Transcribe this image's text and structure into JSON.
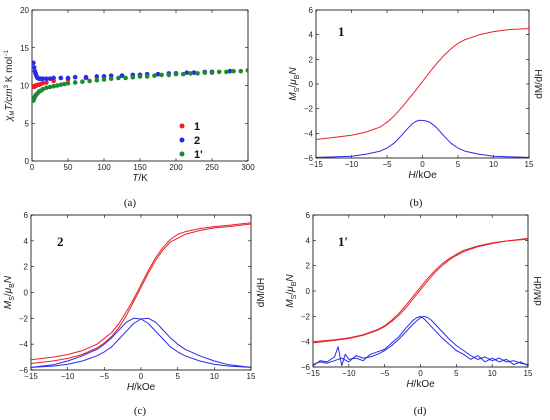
{
  "chart_data": [
    {
      "type": "scatter",
      "panel_caption": "(a)",
      "xlabel_main": "T",
      "xlabel_unit": "/K",
      "ylabel_sym": "χ",
      "ylabel_sub": "M",
      "ylabel_rest": "T/cm",
      "ylabel_sup1": "3",
      "ylabel_unit": " K mol",
      "ylabel_sup2": "−1",
      "xlim": [
        0,
        300
      ],
      "ylim": [
        0,
        20
      ],
      "xticks": [
        0,
        50,
        100,
        150,
        200,
        250,
        300
      ],
      "yticks": [
        0,
        5,
        10,
        15,
        20
      ],
      "legend_position": "right",
      "series": [
        {
          "name": "1",
          "color": "#e8202a",
          "points": [
            [
              2,
              9.9
            ],
            [
              3,
              9.8
            ],
            [
              4,
              9.9
            ],
            [
              5,
              10.0
            ],
            [
              6,
              10.0
            ],
            [
              8,
              10.1
            ],
            [
              10,
              10.1
            ],
            [
              12,
              10.2
            ],
            [
              15,
              10.3
            ],
            [
              20,
              10.4
            ],
            [
              30,
              10.6
            ],
            [
              50,
              10.8
            ],
            [
              75,
              11.0
            ],
            [
              100,
              11.2
            ],
            [
              125,
              11.3
            ],
            [
              150,
              11.4
            ],
            [
              175,
              11.5
            ],
            [
              200,
              11.6
            ],
            [
              225,
              11.7
            ],
            [
              250,
              11.8
            ],
            [
              275,
              11.9
            ],
            [
              300,
              12.0
            ]
          ]
        },
        {
          "name": "2",
          "color": "#2a2ae8",
          "points": [
            [
              2,
              13.0
            ],
            [
              3,
              12.4
            ],
            [
              4,
              11.9
            ],
            [
              5,
              11.6
            ],
            [
              6,
              11.3
            ],
            [
              7,
              11.1
            ],
            [
              8,
              11.0
            ],
            [
              10,
              10.9
            ],
            [
              12,
              10.9
            ],
            [
              15,
              10.9
            ],
            [
              20,
              10.9
            ],
            [
              25,
              10.9
            ],
            [
              30,
              11.0
            ],
            [
              40,
              11.0
            ],
            [
              50,
              11.0
            ],
            [
              60,
              11.1
            ],
            [
              75,
              11.1
            ],
            [
              90,
              11.2
            ],
            [
              100,
              11.2
            ],
            [
              110,
              11.3
            ],
            [
              125,
              11.3
            ],
            [
              140,
              11.4
            ],
            [
              150,
              11.4
            ],
            [
              160,
              11.5
            ],
            [
              175,
              11.5
            ],
            [
              190,
              11.6
            ],
            [
              200,
              11.6
            ],
            [
              215,
              11.7
            ],
            [
              225,
              11.7
            ],
            [
              240,
              11.8
            ],
            [
              250,
              11.8
            ],
            [
              275,
              11.9
            ],
            [
              300,
              12.0
            ]
          ]
        },
        {
          "name": "1'",
          "color": "#1c8a2e",
          "points": [
            [
              2,
              8.0
            ],
            [
              3,
              8.3
            ],
            [
              4,
              8.5
            ],
            [
              5,
              8.7
            ],
            [
              6,
              8.8
            ],
            [
              8,
              9.0
            ],
            [
              10,
              9.2
            ],
            [
              12,
              9.3
            ],
            [
              15,
              9.5
            ],
            [
              20,
              9.7
            ],
            [
              25,
              9.8
            ],
            [
              30,
              9.9
            ],
            [
              35,
              10.0
            ],
            [
              40,
              10.1
            ],
            [
              45,
              10.2
            ],
            [
              50,
              10.3
            ],
            [
              60,
              10.4
            ],
            [
              70,
              10.5
            ],
            [
              80,
              10.6
            ],
            [
              90,
              10.7
            ],
            [
              100,
              10.8
            ],
            [
              110,
              10.9
            ],
            [
              120,
              11.0
            ],
            [
              130,
              11.0
            ],
            [
              140,
              11.1
            ],
            [
              150,
              11.2
            ],
            [
              160,
              11.2
            ],
            [
              170,
              11.3
            ],
            [
              180,
              11.4
            ],
            [
              190,
              11.4
            ],
            [
              200,
              11.5
            ],
            [
              210,
              11.5
            ],
            [
              220,
              11.6
            ],
            [
              230,
              11.6
            ],
            [
              240,
              11.7
            ],
            [
              250,
              11.7
            ],
            [
              260,
              11.8
            ],
            [
              270,
              11.8
            ],
            [
              280,
              11.9
            ],
            [
              290,
              11.9
            ],
            [
              300,
              12.0
            ]
          ]
        }
      ]
    },
    {
      "type": "line",
      "panel_caption": "(b)",
      "panel_label": "1",
      "xlabel_main": "H",
      "xlabel_unit": "/kOe",
      "ylabel_left": {
        "M": "M",
        "Ms": "S",
        "mu": "μ",
        "mub": "B",
        "N": "N"
      },
      "ylabel_right": "dM/dH",
      "xlim": [
        -15,
        15
      ],
      "ylim": [
        -6,
        6
      ],
      "xticks": [
        -15,
        -10,
        -5,
        0,
        5,
        10,
        15
      ],
      "yticks": [
        -6,
        -4,
        -2,
        0,
        2,
        4,
        6
      ],
      "series": [
        {
          "name": "",
          "color": "#e8202a",
          "x": [
            -15,
            -12,
            -10,
            -8,
            -6,
            -5,
            -4,
            -3,
            -2,
            -1,
            0,
            1,
            2,
            3,
            4,
            5,
            6,
            8,
            10,
            12,
            15
          ],
          "y": [
            -4.5,
            -4.3,
            -4.15,
            -3.9,
            -3.5,
            -3.1,
            -2.6,
            -1.95,
            -1.25,
            -0.55,
            0.2,
            0.95,
            1.65,
            2.3,
            2.85,
            3.3,
            3.6,
            4.0,
            4.25,
            4.4,
            4.5
          ]
        },
        {
          "name": "",
          "color": "#2a2ae8",
          "x": [
            -15,
            -12,
            -10,
            -8,
            -6,
            -5,
            -4,
            -3,
            -2,
            -1.5,
            -1,
            -0.5,
            0,
            0.5,
            1,
            1.5,
            2,
            3,
            4,
            5,
            6,
            8,
            10,
            12,
            15
          ],
          "y": [
            -5.95,
            -5.9,
            -5.85,
            -5.7,
            -5.45,
            -5.2,
            -4.8,
            -4.2,
            -3.55,
            -3.25,
            -3.05,
            -2.95,
            -2.95,
            -3.0,
            -3.1,
            -3.3,
            -3.55,
            -4.2,
            -4.8,
            -5.2,
            -5.45,
            -5.7,
            -5.85,
            -5.9,
            -5.95
          ]
        }
      ]
    },
    {
      "type": "line",
      "panel_caption": "(c)",
      "panel_label": "2",
      "xlabel_main": "H",
      "xlabel_unit": "/kOe",
      "ylabel_left": {
        "M": "M",
        "Ms": "S",
        "mu": "μ",
        "mub": "B",
        "N": "N"
      },
      "ylabel_right": "dM/dH",
      "xlim": [
        -15,
        15
      ],
      "ylim": [
        -6,
        6
      ],
      "xticks": [
        -15,
        -10,
        -5,
        0,
        5,
        10,
        15
      ],
      "yticks": [
        -6,
        -4,
        -2,
        0,
        2,
        4,
        6
      ],
      "series": [
        {
          "name": "",
          "color": "#e8202a",
          "x": [
            -15,
            -12,
            -10,
            -8,
            -6,
            -4,
            -3,
            -2,
            -1,
            0,
            1,
            2,
            3,
            4,
            5,
            6,
            8,
            10,
            12,
            15
          ],
          "y": [
            -5.2,
            -5.0,
            -4.8,
            -4.5,
            -4.0,
            -3.1,
            -2.4,
            -1.5,
            -0.5,
            0.6,
            1.7,
            2.7,
            3.5,
            4.1,
            4.5,
            4.7,
            4.95,
            5.1,
            5.2,
            5.4
          ]
        },
        {
          "name": "",
          "color": "#e8202a",
          "x": [
            -15,
            -12,
            -10,
            -8,
            -6,
            -5,
            -4,
            -3,
            -2,
            -1,
            0,
            1,
            2,
            3,
            4,
            6,
            8,
            10,
            12,
            15
          ],
          "y": [
            -5.5,
            -5.3,
            -5.1,
            -4.8,
            -4.3,
            -3.9,
            -3.4,
            -2.7,
            -1.8,
            -0.7,
            0.4,
            1.5,
            2.5,
            3.3,
            3.9,
            4.5,
            4.8,
            5.0,
            5.1,
            5.3
          ]
        },
        {
          "name": "",
          "color": "#2a2ae8",
          "x": [
            -15,
            -12,
            -10,
            -8,
            -6,
            -5,
            -4,
            -3,
            -2,
            -1,
            0,
            1,
            2,
            3,
            4,
            5,
            6,
            8,
            10,
            12,
            15
          ],
          "y": [
            -5.8,
            -5.6,
            -5.3,
            -4.9,
            -4.4,
            -4.0,
            -3.5,
            -2.9,
            -2.3,
            -2.0,
            -2.05,
            -2.4,
            -3.0,
            -3.6,
            -4.2,
            -4.6,
            -4.9,
            -5.3,
            -5.55,
            -5.7,
            -5.8
          ]
        },
        {
          "name": "",
          "color": "#2a2ae8",
          "x": [
            -15,
            -12,
            -10,
            -8,
            -6,
            -5,
            -4,
            -3,
            -2,
            -1,
            0,
            1,
            2,
            3,
            4,
            5,
            6,
            8,
            10,
            12,
            15
          ],
          "y": [
            -5.8,
            -5.7,
            -5.55,
            -5.3,
            -4.9,
            -4.6,
            -4.2,
            -3.6,
            -3.0,
            -2.4,
            -2.05,
            -2.0,
            -2.3,
            -2.9,
            -3.5,
            -4.0,
            -4.4,
            -4.9,
            -5.3,
            -5.6,
            -5.8
          ]
        }
      ]
    },
    {
      "type": "line",
      "panel_caption": "(d)",
      "panel_label": "1′",
      "xlabel_main": "H",
      "xlabel_unit": "/kOe",
      "ylabel_left": {
        "M": "M",
        "Ms": "S",
        "mu": "μ",
        "mub": "B",
        "N": "N"
      },
      "ylabel_right": "dM/dH",
      "xlim": [
        -15,
        15
      ],
      "ylim": [
        -6,
        6
      ],
      "xticks": [
        -15,
        -10,
        -5,
        0,
        5,
        10,
        15
      ],
      "yticks": [
        -6,
        -4,
        -2,
        0,
        2,
        4,
        6
      ],
      "series": [
        {
          "name": "",
          "color": "#e8202a",
          "x": [
            -15,
            -12,
            -10,
            -8,
            -6,
            -5,
            -4,
            -3,
            -2,
            -1,
            0,
            1,
            2,
            3,
            4,
            5,
            6,
            8,
            10,
            12,
            15
          ],
          "y": [
            -4.1,
            -3.9,
            -3.75,
            -3.5,
            -3.1,
            -2.8,
            -2.4,
            -1.9,
            -1.3,
            -0.6,
            0.1,
            0.8,
            1.45,
            2.0,
            2.45,
            2.8,
            3.1,
            3.5,
            3.75,
            3.95,
            4.15
          ]
        },
        {
          "name": "",
          "color": "#e8202a",
          "x": [
            -15,
            -12,
            -10,
            -8,
            -6,
            -5,
            -4,
            -3,
            -2,
            -1,
            0,
            1,
            2,
            3,
            4,
            5,
            6,
            8,
            10,
            12,
            15
          ],
          "y": [
            -4.0,
            -3.85,
            -3.7,
            -3.45,
            -3.05,
            -2.75,
            -2.3,
            -1.75,
            -1.1,
            -0.4,
            0.3,
            1.0,
            1.6,
            2.15,
            2.55,
            2.9,
            3.2,
            3.55,
            3.8,
            3.95,
            4.1
          ]
        },
        {
          "name": "",
          "color": "#2a2ae8",
          "x": [
            -15,
            -14,
            -13,
            -12,
            -11.5,
            -11,
            -10.5,
            -10,
            -9,
            -8,
            -7,
            -6,
            -5,
            -4,
            -3,
            -2,
            -1,
            -0.5,
            0,
            0.5,
            1,
            2,
            3,
            4,
            5,
            6,
            7,
            8,
            9,
            10,
            11,
            12,
            13,
            14,
            15
          ],
          "y": [
            -5.9,
            -5.5,
            -5.6,
            -5.2,
            -4.4,
            -5.9,
            -5.0,
            -5.4,
            -5.3,
            -5.5,
            -5.0,
            -4.8,
            -4.6,
            -4.1,
            -3.6,
            -2.9,
            -2.3,
            -2.1,
            -2.0,
            -2.2,
            -2.5,
            -3.1,
            -3.7,
            -4.2,
            -4.7,
            -5.0,
            -5.4,
            -5.1,
            -5.6,
            -5.3,
            -5.6,
            -5.4,
            -5.8,
            -5.6,
            -5.9
          ]
        },
        {
          "name": "",
          "color": "#2a2ae8",
          "x": [
            -15,
            -14,
            -13,
            -12,
            -11,
            -10,
            -9,
            -8,
            -7,
            -6,
            -5,
            -4,
            -3,
            -2,
            -1,
            0,
            0.5,
            1,
            1.5,
            2,
            3,
            4,
            5,
            6,
            7,
            8,
            9,
            10,
            11,
            12,
            13,
            14,
            15
          ],
          "y": [
            -5.8,
            -5.6,
            -5.7,
            -5.5,
            -5.3,
            -5.6,
            -5.1,
            -5.3,
            -5.2,
            -5.0,
            -4.7,
            -4.3,
            -3.8,
            -3.2,
            -2.6,
            -2.1,
            -2.0,
            -2.1,
            -2.3,
            -2.6,
            -3.2,
            -3.8,
            -4.3,
            -4.7,
            -5.1,
            -5.4,
            -5.2,
            -5.5,
            -5.3,
            -5.6,
            -5.5,
            -5.7,
            -5.8
          ]
        }
      ]
    }
  ]
}
